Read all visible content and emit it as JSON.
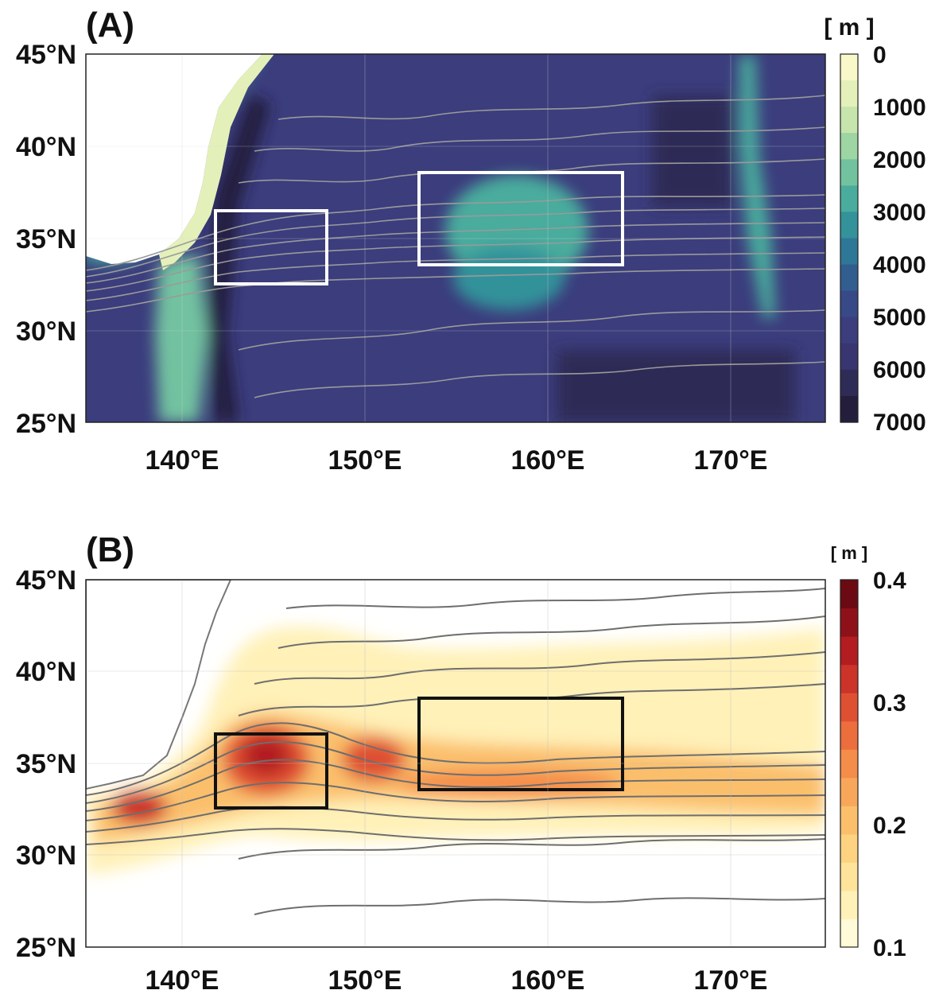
{
  "panels": [
    {
      "id": "A",
      "label": "(A)",
      "colorbar_unit": "[ m ]",
      "colorbar_ticks": [
        "0",
        "1000",
        "2000",
        "3000",
        "4000",
        "5000",
        "6000",
        "7000"
      ],
      "colorscale": [
        "#f9f8c9",
        "#e4f0b9",
        "#c6e5ad",
        "#9dd5a3",
        "#72c2a0",
        "#4aac9d",
        "#33929a",
        "#2f7796",
        "#325d8f",
        "#374987",
        "#3b3d7d",
        "#383570",
        "#2f2b57",
        "#241e3c"
      ],
      "box_color": "#ffffff"
    },
    {
      "id": "B",
      "label": "(B)",
      "colorbar_unit": "[ m ]",
      "colorbar_ticks": [
        "0.4",
        "0.3",
        "0.2",
        "0.1"
      ],
      "colorscale": [
        "#fffbd8",
        "#fff1b8",
        "#ffe39a",
        "#fdd381",
        "#fbbf6c",
        "#f8a75a",
        "#f48c4a",
        "#ec6e3c",
        "#df5032",
        "#cc3329",
        "#b31d22",
        "#8e1119",
        "#6b0a12"
      ],
      "box_color": "#111111"
    }
  ],
  "axes": {
    "lat_labels": [
      "45°N",
      "40°N",
      "35°N",
      "30°N",
      "25°N"
    ],
    "lon_labels": [
      "140°E",
      "150°E",
      "160°E",
      "170°E"
    ]
  }
}
